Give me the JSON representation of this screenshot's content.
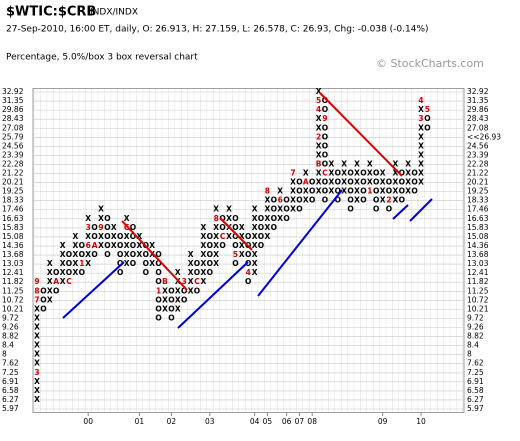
{
  "header": {
    "symbol": "$WTIC:$CRB",
    "exchange": "INDX/INDX",
    "quote": "27-Sep-2010, 16:00 ET, daily, O: 26.913, H: 27.159, L: 26.578, C: 26.93, Chg: -0.038 (-0.14%)",
    "method": "Percentage, 5.0%/box 3 box reversal chart",
    "copyright": "© StockCharts.com"
  },
  "chart_data": {
    "type": "point-and-figure",
    "log_scale": true,
    "grid": true,
    "ylim": [
      5.97,
      32.92
    ],
    "yticks": [
      5.97,
      6.27,
      6.58,
      6.91,
      7.25,
      7.62,
      8.0,
      8.4,
      8.82,
      9.26,
      9.72,
      10.21,
      10.72,
      11.25,
      11.82,
      12.41,
      13.03,
      13.68,
      14.36,
      15.08,
      15.83,
      16.63,
      17.46,
      18.33,
      19.25,
      20.21,
      21.22,
      22.28,
      23.39,
      24.56,
      25.79,
      27.08,
      28.43,
      29.86,
      31.35,
      32.92
    ],
    "y2ticks": [
      5.97,
      6.27,
      6.58,
      6.91,
      7.25,
      7.62,
      8.0,
      8.4,
      8.82,
      9.26,
      9.72,
      10.21,
      10.72,
      11.25,
      11.82,
      12.41,
      13.03,
      13.68,
      14.36,
      15.08,
      15.83,
      16.63,
      17.46,
      18.33,
      19.25,
      20.21,
      21.22,
      22.28,
      23.39,
      24.56,
      {
        "value": 26.93,
        "label": "<<26.93"
      },
      27.08,
      28.43,
      29.86,
      31.35,
      32.92
    ],
    "x_color": "#000000",
    "o_color": "#000000",
    "marker_color": "#cc0000",
    "categories": [
      null,
      null,
      null,
      null,
      null,
      null,
      null,
      null,
      "00",
      null,
      null,
      null,
      null,
      null,
      null,
      null,
      "01",
      null,
      null,
      null,
      null,
      "02",
      null,
      null,
      null,
      null,
      null,
      "03",
      null,
      null,
      null,
      null,
      null,
      null,
      "04",
      null,
      "05",
      null,
      null,
      "06",
      null,
      "07",
      null,
      "08",
      null,
      null,
      null,
      null,
      null,
      null,
      null,
      null,
      null,
      null,
      "09",
      null,
      null,
      null,
      null,
      null,
      "10",
      null
    ],
    "columns": [
      {
        "type": "X",
        "low": 6.27,
        "high": 11.82,
        "markers": [
          {
            "value": 11.82,
            "label": "9"
          },
          {
            "value": 11.25,
            "label": "8"
          },
          {
            "value": 10.72,
            "label": "7"
          },
          {
            "value": 7.25,
            "label": "3"
          }
        ]
      },
      {
        "type": "O",
        "high": 11.25,
        "low": 10.21
      },
      {
        "type": "X",
        "low": 10.72,
        "high": 13.03
      },
      {
        "type": "O",
        "high": 12.41,
        "low": 11.25,
        "markers": [
          {
            "value": 11.82,
            "label": "A"
          }
        ]
      },
      {
        "type": "X",
        "low": 11.82,
        "high": 14.36
      },
      {
        "type": "O",
        "high": 13.68,
        "low": 11.82,
        "markers": [
          {
            "value": 11.82,
            "label": "C"
          }
        ]
      },
      {
        "type": "X",
        "low": 12.41,
        "high": 15.08
      },
      {
        "type": "O",
        "high": 14.36,
        "low": 12.41,
        "markers": [
          {
            "value": 13.03,
            "label": "1"
          }
        ]
      },
      {
        "type": "X",
        "low": 13.03,
        "high": 16.63,
        "markers": [
          {
            "value": 15.83,
            "label": "3"
          },
          {
            "value": 14.36,
            "label": "6"
          }
        ]
      },
      {
        "type": "O",
        "high": 15.83,
        "low": 13.68,
        "markers": [
          {
            "value": 14.36,
            "label": "A"
          }
        ]
      },
      {
        "type": "X",
        "low": 14.36,
        "high": 17.46,
        "markers": [
          {
            "value": 15.83,
            "label": "9"
          }
        ]
      },
      {
        "type": "O",
        "high": 16.63,
        "low": 13.68
      },
      {
        "type": "X",
        "low": 14.36,
        "high": 15.83
      },
      {
        "type": "O",
        "high": 15.08,
        "low": 12.41
      },
      {
        "type": "X",
        "low": 13.03,
        "high": 16.63,
        "markers": [
          {
            "value": 15.83,
            "label": "C"
          }
        ]
      },
      {
        "type": "O",
        "high": 15.83,
        "low": 13.03
      },
      {
        "type": "X",
        "low": 13.68,
        "high": 15.08
      },
      {
        "type": "O",
        "high": 14.36,
        "low": 12.41
      },
      {
        "type": "X",
        "low": 13.03,
        "high": 14.36
      },
      {
        "type": "O",
        "high": 13.68,
        "low": 9.72,
        "markers": [
          {
            "value": 11.25,
            "label": "1"
          }
        ]
      },
      {
        "type": "X",
        "low": 10.21,
        "high": 11.82,
        "markers": [
          {
            "value": 11.82,
            "label": "B"
          }
        ]
      },
      {
        "type": "O",
        "high": 11.25,
        "low": 9.72
      },
      {
        "type": "X",
        "low": 10.21,
        "high": 12.41
      },
      {
        "type": "O",
        "high": 11.82,
        "low": 10.72,
        "markers": [
          {
            "value": 11.82,
            "label": "3"
          }
        ]
      },
      {
        "type": "X",
        "low": 11.25,
        "high": 13.68
      },
      {
        "type": "O",
        "high": 13.03,
        "low": 11.25,
        "markers": [
          {
            "value": 11.82,
            "label": "C"
          }
        ]
      },
      {
        "type": "X",
        "low": 11.82,
        "high": 15.83
      },
      {
        "type": "O",
        "high": 15.08,
        "low": 12.41
      },
      {
        "type": "X",
        "low": 13.03,
        "high": 17.46,
        "markers": [
          {
            "value": 16.63,
            "label": "8"
          }
        ]
      },
      {
        "type": "O",
        "high": 16.63,
        "low": 14.36,
        "markers": [
          {
            "value": 15.08,
            "label": "C"
          }
        ]
      },
      {
        "type": "X",
        "low": 15.08,
        "high": 17.46
      },
      {
        "type": "O",
        "high": 16.63,
        "low": 13.03,
        "markers": [
          {
            "value": 13.68,
            "label": "5"
          }
        ]
      },
      {
        "type": "X",
        "low": 13.68,
        "high": 15.83
      },
      {
        "type": "O",
        "high": 15.08,
        "low": 11.82,
        "markers": [
          {
            "value": 12.41,
            "label": "4"
          }
        ]
      },
      {
        "type": "X",
        "low": 12.41,
        "high": 17.46
      },
      {
        "type": "O",
        "high": 16.63,
        "low": 14.36
      },
      {
        "type": "X",
        "low": 15.08,
        "high": 19.25,
        "markers": [
          {
            "value": 19.25,
            "label": "8"
          }
        ]
      },
      {
        "type": "O",
        "high": 18.33,
        "low": 15.83
      },
      {
        "type": "X",
        "low": 16.63,
        "high": 19.25,
        "markers": [
          {
            "value": 18.33,
            "label": "6"
          }
        ]
      },
      {
        "type": "O",
        "high": 18.33,
        "low": 16.63
      },
      {
        "type": "X",
        "low": 17.46,
        "high": 21.22,
        "markers": [
          {
            "value": 21.22,
            "label": "7"
          }
        ]
      },
      {
        "type": "O",
        "high": 20.21,
        "low": 17.46
      },
      {
        "type": "X",
        "low": 18.33,
        "high": 21.22,
        "markers": [
          {
            "value": 20.21,
            "label": "A"
          }
        ]
      },
      {
        "type": "O",
        "high": 20.21,
        "low": 18.33
      },
      {
        "type": "X",
        "low": 19.25,
        "high": 32.92,
        "markers": [
          {
            "value": 31.35,
            "label": "5"
          },
          {
            "value": 29.86,
            "label": "4"
          },
          {
            "value": 25.79,
            "label": "2"
          },
          {
            "value": 22.28,
            "label": "B"
          }
        ]
      },
      {
        "type": "O",
        "high": 31.35,
        "low": 18.33,
        "markers": [
          {
            "value": 28.43,
            "label": "9"
          },
          {
            "value": 21.22,
            "label": "C"
          }
        ]
      },
      {
        "type": "X",
        "low": 19.25,
        "high": 22.28
      },
      {
        "type": "O",
        "high": 21.22,
        "low": 18.33
      },
      {
        "type": "X",
        "low": 19.25,
        "high": 22.28
      },
      {
        "type": "O",
        "high": 21.22,
        "low": 17.46
      },
      {
        "type": "X",
        "low": 18.33,
        "high": 22.28
      },
      {
        "type": "O",
        "high": 21.22,
        "low": 18.33
      },
      {
        "type": "X",
        "low": 19.25,
        "high": 22.28,
        "markers": [
          {
            "value": 19.25,
            "label": "1"
          }
        ]
      },
      {
        "type": "O",
        "high": 21.22,
        "low": 17.46
      },
      {
        "type": "X",
        "low": 18.33,
        "high": 21.22
      },
      {
        "type": "O",
        "high": 20.21,
        "low": 17.46,
        "markers": [
          {
            "value": 18.33,
            "label": "2"
          }
        ]
      },
      {
        "type": "X",
        "low": 18.33,
        "high": 22.28
      },
      {
        "type": "O",
        "high": 21.22,
        "low": 18.33
      },
      {
        "type": "X",
        "low": 19.25,
        "high": 22.28
      },
      {
        "type": "O",
        "high": 21.22,
        "low": 19.25
      },
      {
        "type": "X",
        "low": 20.21,
        "high": 31.35,
        "markers": [
          {
            "value": 31.35,
            "label": "4"
          },
          {
            "value": 28.43,
            "label": "3"
          }
        ]
      },
      {
        "type": "O",
        "high": 29.86,
        "low": 27.08,
        "markers": [
          {
            "value": 29.86,
            "label": "5"
          }
        ]
      }
    ]
  }
}
